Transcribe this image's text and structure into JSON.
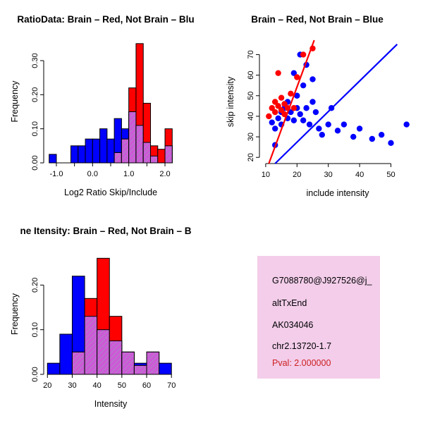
{
  "figure": {
    "background": "#ffffff"
  },
  "colors": {
    "brain": "#ff0000",
    "not_brain": "#0000ff",
    "overlap_base": "#c06ad0",
    "overlap_line": "#e040e0",
    "axis": "#000000"
  },
  "info_box": {
    "background": "#f3cdea",
    "text_color": "#000000",
    "pval_color": "#cc2020",
    "lines": [
      "G7088780@J927526@j_",
      "altTxEnd",
      "AK034046",
      "chr2.13720-1.7",
      "Pval: 2.000000"
    ]
  },
  "chart_data": [
    {
      "id": "ratio-histogram",
      "type": "bar",
      "subtype": "overlaid-histogram",
      "title": "RatioData: Brain – Red, Not Brain – Blu",
      "xlabel": "Log2 Ratio Skip/Include",
      "ylabel": "Frequency",
      "xlim": [
        -1.35,
        2.35
      ],
      "ylim": [
        0,
        0.36
      ],
      "bin_width": 0.2,
      "grid": false,
      "xticks": [
        {
          "v": -1.0,
          "label": "-1.0"
        },
        {
          "v": -0.5,
          "label": ""
        },
        {
          "v": 0.0,
          "label": "0.0"
        },
        {
          "v": 0.5,
          "label": ""
        },
        {
          "v": 1.0,
          "label": "1.0"
        },
        {
          "v": 1.5,
          "label": ""
        },
        {
          "v": 2.0,
          "label": "2.0"
        }
      ],
      "yticks": [
        {
          "v": 0.0,
          "label": "0.00"
        },
        {
          "v": 0.1,
          "label": "0.10"
        },
        {
          "v": 0.2,
          "label": "0.20"
        },
        {
          "v": 0.3,
          "label": "0.30"
        }
      ],
      "series": [
        {
          "name": "Not Brain",
          "color": "#0000ff",
          "bins": [
            {
              "x": -1.2,
              "f": 0.025
            },
            {
              "x": -0.6,
              "f": 0.05
            },
            {
              "x": -0.4,
              "f": 0.05
            },
            {
              "x": -0.2,
              "f": 0.07
            },
            {
              "x": 0.0,
              "f": 0.07
            },
            {
              "x": 0.2,
              "f": 0.1
            },
            {
              "x": 0.4,
              "f": 0.07
            },
            {
              "x": 0.6,
              "f": 0.13
            },
            {
              "x": 0.8,
              "f": 0.1
            },
            {
              "x": 1.0,
              "f": 0.15
            },
            {
              "x": 1.2,
              "f": 0.11
            },
            {
              "x": 1.4,
              "f": 0.06
            },
            {
              "x": 1.6,
              "f": 0.02
            },
            {
              "x": 2.0,
              "f": 0.05
            }
          ]
        },
        {
          "name": "Brain",
          "color": "#ff0000",
          "bins": [
            {
              "x": 0.6,
              "f": 0.03
            },
            {
              "x": 0.8,
              "f": 0.07
            },
            {
              "x": 1.0,
              "f": 0.22
            },
            {
              "x": 1.2,
              "f": 0.35
            },
            {
              "x": 1.4,
              "f": 0.175
            },
            {
              "x": 1.6,
              "f": 0.05
            },
            {
              "x": 1.8,
              "f": 0.04
            },
            {
              "x": 2.0,
              "f": 0.1
            }
          ]
        }
      ]
    },
    {
      "id": "intensity-scatter",
      "type": "scatter",
      "title": "Brain – Red, Not Brain – Blue",
      "xlabel": "include intensity",
      "ylabel": "skip intensity",
      "xlim": [
        8,
        58
      ],
      "ylim": [
        17,
        77
      ],
      "grid": false,
      "xticks": [
        {
          "v": 10,
          "label": "10"
        },
        {
          "v": 20,
          "label": "20"
        },
        {
          "v": 30,
          "label": "30"
        },
        {
          "v": 40,
          "label": "40"
        },
        {
          "v": 50,
          "label": "50"
        }
      ],
      "yticks": [
        {
          "v": 20,
          "label": "20"
        },
        {
          "v": 30,
          "label": "30"
        },
        {
          "v": 40,
          "label": "40"
        },
        {
          "v": 50,
          "label": "50"
        },
        {
          "v": 60,
          "label": "60"
        },
        {
          "v": 70,
          "label": "70"
        }
      ],
      "series": [
        {
          "name": "Not Brain",
          "color": "#0000ff",
          "points": [
            [
              12,
              37
            ],
            [
              13,
              34
            ],
            [
              13,
              26
            ],
            [
              14,
              39
            ],
            [
              15,
              36
            ],
            [
              15,
              42
            ],
            [
              16,
              44
            ],
            [
              17,
              39
            ],
            [
              17,
              47
            ],
            [
              18,
              42
            ],
            [
              19,
              38
            ],
            [
              19,
              61
            ],
            [
              20,
              50
            ],
            [
              20,
              44
            ],
            [
              21,
              41
            ],
            [
              21,
              70
            ],
            [
              22,
              55
            ],
            [
              22,
              38
            ],
            [
              23,
              44
            ],
            [
              23,
              65
            ],
            [
              24,
              36
            ],
            [
              25,
              47
            ],
            [
              25,
              58
            ],
            [
              26,
              42
            ],
            [
              27,
              34
            ],
            [
              28,
              31
            ],
            [
              30,
              36
            ],
            [
              31,
              44
            ],
            [
              33,
              33
            ],
            [
              35,
              36
            ],
            [
              38,
              30
            ],
            [
              40,
              34
            ],
            [
              44,
              29
            ],
            [
              47,
              31
            ],
            [
              50,
              27
            ],
            [
              55,
              36
            ]
          ]
        },
        {
          "name": "Brain",
          "color": "#ff0000",
          "points": [
            [
              11,
              40
            ],
            [
              12,
              44
            ],
            [
              13,
              47
            ],
            [
              13,
              42
            ],
            [
              14,
              45
            ],
            [
              14,
              61
            ],
            [
              15,
              43
            ],
            [
              15,
              49
            ],
            [
              16,
              41
            ],
            [
              16,
              46
            ],
            [
              17,
              44
            ],
            [
              18,
              51
            ],
            [
              19,
              44
            ],
            [
              20,
              59
            ],
            [
              22,
              70
            ],
            [
              25,
              73
            ]
          ]
        }
      ],
      "fit_lines": [
        {
          "name": "brain-fit-line",
          "color": "#ff0000",
          "x1": 11,
          "y1": 17,
          "x2": 25.5,
          "y2": 77
        },
        {
          "name": "not-brain-fit-line",
          "color": "#0000ff",
          "x1": 13,
          "y1": 17,
          "x2": 52,
          "y2": 75
        }
      ]
    },
    {
      "id": "gene-intensity-histogram",
      "type": "bar",
      "subtype": "overlaid-histogram",
      "title": "ne Itensity: Brain – Red, Not Brain – B",
      "xlabel": "Intensity",
      "ylabel": "Frequency",
      "xlim": [
        18.5,
        72.5
      ],
      "ylim": [
        0,
        0.27
      ],
      "bin_width": 5,
      "grid": false,
      "xticks": [
        {
          "v": 20,
          "label": "20"
        },
        {
          "v": 30,
          "label": "30"
        },
        {
          "v": 40,
          "label": "40"
        },
        {
          "v": 50,
          "label": "50"
        },
        {
          "v": 60,
          "label": "60"
        },
        {
          "v": 70,
          "label": "70"
        }
      ],
      "yticks": [
        {
          "v": 0.0,
          "label": "0.00"
        },
        {
          "v": 0.1,
          "label": "0.10"
        },
        {
          "v": 0.2,
          "label": "0.20"
        }
      ],
      "series": [
        {
          "name": "Not Brain",
          "color": "#0000ff",
          "bins": [
            {
              "x": 20,
              "f": 0.025
            },
            {
              "x": 25,
              "f": 0.09
            },
            {
              "x": 30,
              "f": 0.22
            },
            {
              "x": 35,
              "f": 0.13
            },
            {
              "x": 40,
              "f": 0.1
            },
            {
              "x": 45,
              "f": 0.075
            },
            {
              "x": 50,
              "f": 0.05
            },
            {
              "x": 55,
              "f": 0.025
            },
            {
              "x": 60,
              "f": 0.05
            },
            {
              "x": 65,
              "f": 0.025
            }
          ]
        },
        {
          "name": "Brain",
          "color": "#ff0000",
          "bins": [
            {
              "x": 30,
              "f": 0.05
            },
            {
              "x": 35,
              "f": 0.17
            },
            {
              "x": 40,
              "f": 0.26
            },
            {
              "x": 45,
              "f": 0.13
            },
            {
              "x": 50,
              "f": 0.05
            },
            {
              "x": 55,
              "f": 0.02
            },
            {
              "x": 60,
              "f": 0.05
            }
          ]
        }
      ]
    }
  ]
}
